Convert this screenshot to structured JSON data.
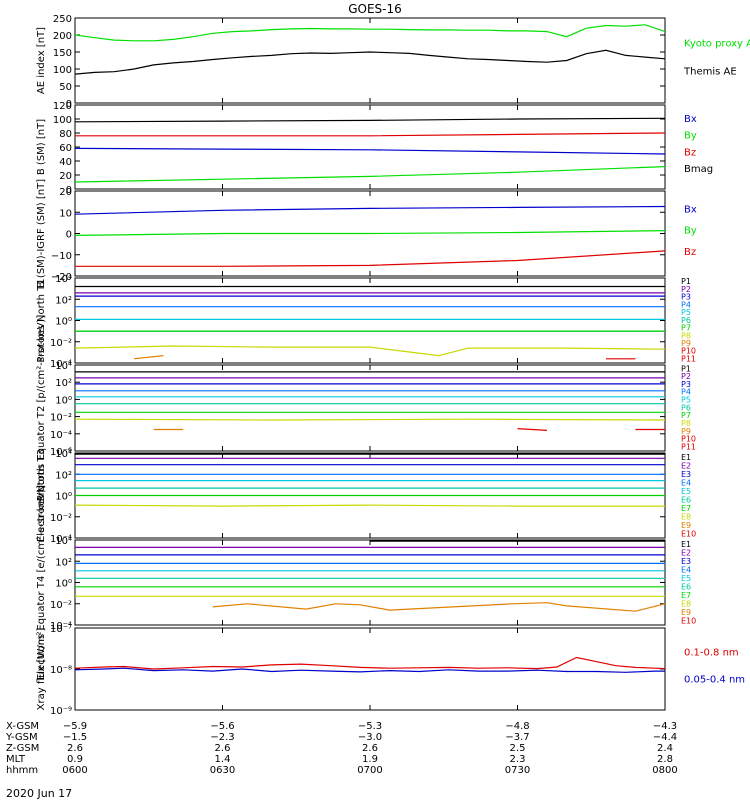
{
  "title": "GOES-16",
  "date_label": "2020 Jun 17",
  "colors": {
    "black": "#000000",
    "green": "#00e000",
    "blue": "#0000cc",
    "red": "#e00000",
    "P1": "#000000",
    "P2": "#7a00b0",
    "P3": "#0000d0",
    "P4": "#0070ff",
    "P5": "#00c8e0",
    "P6": "#00c8a0",
    "P7": "#00d000",
    "P8": "#c8d800",
    "P9": "#e08000",
    "P10": "#e00000",
    "P11": "#e00000"
  },
  "chart_data": [
    {
      "type": "line",
      "ylabel": "AE index [nT]",
      "ylim": [
        0,
        250
      ],
      "yticks": [
        "0",
        "50",
        "100",
        "150",
        "200",
        "250"
      ],
      "series": [
        {
          "name": "Kyoto proxy AE",
          "color": "#00e000",
          "x": [
            0,
            4,
            8,
            12,
            16,
            20,
            24,
            28,
            32,
            36,
            40,
            44,
            48,
            52,
            56,
            60,
            64,
            68,
            72,
            76,
            80,
            84,
            88,
            92,
            96,
            100,
            104,
            108,
            112,
            116,
            120
          ],
          "values": [
            200,
            192,
            185,
            183,
            183,
            187,
            195,
            205,
            210,
            212,
            216,
            218,
            219,
            218,
            218,
            217,
            217,
            216,
            215,
            215,
            214,
            214,
            212,
            212,
            210,
            195,
            220,
            228,
            226,
            230,
            210
          ]
        },
        {
          "name": "Themis AE",
          "color": "#000000",
          "x": [
            0,
            4,
            8,
            12,
            16,
            20,
            24,
            28,
            32,
            36,
            40,
            44,
            48,
            52,
            56,
            60,
            64,
            68,
            72,
            76,
            80,
            84,
            88,
            92,
            96,
            100,
            104,
            108,
            112,
            116,
            120
          ],
          "values": [
            85,
            90,
            92,
            100,
            112,
            118,
            122,
            128,
            133,
            137,
            140,
            145,
            147,
            146,
            148,
            150,
            148,
            146,
            140,
            135,
            130,
            128,
            125,
            122,
            120,
            125,
            145,
            155,
            140,
            135,
            130
          ]
        }
      ]
    },
    {
      "type": "line",
      "ylabel": "B (SM) [nT]",
      "ylim": [
        0,
        120
      ],
      "yticks": [
        "0",
        "20",
        "40",
        "60",
        "80",
        "100",
        "120"
      ],
      "series": [
        {
          "name": "Bx",
          "color": "#0000cc",
          "x": [
            0,
            30,
            60,
            90,
            120
          ],
          "values": [
            58,
            57,
            56,
            53,
            50
          ]
        },
        {
          "name": "By",
          "color": "#00e000",
          "x": [
            0,
            30,
            60,
            90,
            120
          ],
          "values": [
            10,
            14,
            18,
            24,
            32
          ]
        },
        {
          "name": "Bz",
          "color": "#e00000",
          "x": [
            0,
            30,
            60,
            90,
            120
          ],
          "values": [
            76,
            76,
            76,
            78,
            80
          ]
        },
        {
          "name": "Bmag",
          "color": "#000000",
          "x": [
            0,
            30,
            60,
            90,
            120
          ],
          "values": [
            96,
            97,
            98,
            100,
            101
          ]
        }
      ]
    },
    {
      "type": "line",
      "ylabel": "B (SM)-IGRF (SM) [nT]",
      "ylim": [
        -22,
        22
      ],
      "yticks": [
        "−20",
        "−10",
        "0",
        "10",
        "20"
      ],
      "series": [
        {
          "name": "Bx",
          "color": "#0000cc",
          "x": [
            0,
            30,
            60,
            90,
            120
          ],
          "values": [
            10,
            12,
            13,
            13.5,
            14
          ]
        },
        {
          "name": "By",
          "color": "#00e000",
          "x": [
            0,
            30,
            60,
            90,
            120
          ],
          "values": [
            -1,
            0,
            0,
            0.5,
            1.5
          ]
        },
        {
          "name": "Bz",
          "color": "#e00000",
          "x": [
            0,
            30,
            60,
            90,
            120
          ],
          "values": [
            -17,
            -17,
            -16.5,
            -14,
            -9
          ]
        }
      ]
    },
    {
      "type": "line",
      "log": true,
      "ylabel": "Protons North T1",
      "ylim_exp": [
        -4,
        4
      ],
      "yticks": [
        "10⁻⁴",
        "10⁻²",
        "10⁰",
        "10²",
        "10⁴"
      ],
      "series": [
        {
          "name": "P1",
          "x": [
            0,
            120
          ],
          "values": [
            3.2,
            3.2
          ]
        },
        {
          "name": "P2",
          "x": [
            0,
            120
          ],
          "values": [
            2.6,
            2.6
          ]
        },
        {
          "name": "P3",
          "x": [
            0,
            120
          ],
          "values": [
            2.3,
            2.3
          ]
        },
        {
          "name": "P4",
          "x": [
            0,
            120
          ],
          "values": [
            1.3,
            1.3
          ]
        },
        {
          "name": "P5",
          "x": [
            0,
            120
          ],
          "values": [
            0.1,
            0.1
          ]
        },
        {
          "name": "P6",
          "x": [
            0,
            120
          ],
          "values": [
            -1.0,
            -1.0
          ]
        },
        {
          "name": "P7",
          "x": [
            0,
            120
          ],
          "values": [
            -1.0,
            -1.0
          ]
        },
        {
          "name": "P8",
          "x": [
            0,
            20,
            40,
            60,
            74,
            80,
            100,
            120
          ],
          "values": [
            -2.6,
            -2.4,
            -2.5,
            -2.5,
            -3.3,
            -2.6,
            -2.6,
            -2.7
          ]
        },
        {
          "name": "P9",
          "x": [
            12,
            18
          ],
          "values": [
            -3.6,
            -3.3
          ]
        },
        {
          "name": "P10",
          "x": [
            108,
            114
          ],
          "values": [
            -3.6,
            -3.6
          ]
        },
        {
          "name": "P11",
          "x": [],
          "values": []
        }
      ]
    },
    {
      "type": "line",
      "log": true,
      "ylabel": "Protons Equator T2 [p/(cm²-s-sr-keV)]",
      "ylim_exp": [
        -6,
        4
      ],
      "yticks": [
        "10⁻⁶",
        "10⁻⁴",
        "10⁻²",
        "10⁰",
        "10²",
        "10⁴"
      ],
      "series": [
        {
          "name": "P1",
          "x": [
            0,
            120
          ],
          "values": [
            3.2,
            3.2
          ]
        },
        {
          "name": "P2",
          "x": [
            0,
            120
          ],
          "values": [
            2.5,
            2.5
          ]
        },
        {
          "name": "P3",
          "x": [
            0,
            120
          ],
          "values": [
            1.8,
            1.8
          ]
        },
        {
          "name": "P4",
          "x": [
            0,
            120
          ],
          "values": [
            1.0,
            1.0
          ]
        },
        {
          "name": "P5",
          "x": [
            0,
            120
          ],
          "values": [
            0.3,
            0.3
          ]
        },
        {
          "name": "P6",
          "x": [
            0,
            120
          ],
          "values": [
            -0.5,
            -0.5
          ]
        },
        {
          "name": "P7",
          "x": [
            0,
            120
          ],
          "values": [
            -1.5,
            -1.5
          ]
        },
        {
          "name": "P8",
          "x": [
            0,
            40,
            80,
            120
          ],
          "values": [
            -2.3,
            -2.4,
            -2.3,
            -2.4
          ]
        },
        {
          "name": "P9",
          "x": [
            16,
            22
          ],
          "values": [
            -3.5,
            -3.5
          ]
        },
        {
          "name": "P10",
          "x": [
            90,
            96
          ],
          "values": [
            -3.4,
            -3.6
          ]
        },
        {
          "name": "P11",
          "x": [
            114,
            120
          ],
          "values": [
            -3.5,
            -3.5
          ]
        }
      ]
    },
    {
      "type": "line",
      "log": true,
      "ylabel": "Electrons North T3",
      "ylim_exp": [
        -4,
        4
      ],
      "yticks": [
        "10⁻⁴",
        "10⁻²",
        "10⁰",
        "10²",
        "10⁴"
      ],
      "series": [
        {
          "name": "E1",
          "x": [
            0,
            120
          ],
          "values": [
            3.9,
            3.9
          ]
        },
        {
          "name": "E2",
          "x": [
            0,
            120
          ],
          "values": [
            3.5,
            3.5
          ]
        },
        {
          "name": "E3",
          "x": [
            0,
            120
          ],
          "values": [
            2.9,
            2.9
          ]
        },
        {
          "name": "E4",
          "x": [
            0,
            120
          ],
          "values": [
            2.0,
            2.0
          ]
        },
        {
          "name": "E5",
          "x": [
            0,
            120
          ],
          "values": [
            1.4,
            1.4
          ]
        },
        {
          "name": "E6",
          "x": [
            0,
            120
          ],
          "values": [
            0.7,
            0.7
          ]
        },
        {
          "name": "E7",
          "x": [
            0,
            120
          ],
          "values": [
            0.0,
            0.0
          ]
        },
        {
          "name": "E8",
          "x": [
            0,
            30,
            60,
            90,
            120
          ],
          "values": [
            -0.9,
            -1.0,
            -0.9,
            -1.0,
            -1.0
          ]
        },
        {
          "name": "E9",
          "x": [],
          "values": []
        },
        {
          "name": "E10",
          "x": [],
          "values": []
        }
      ]
    },
    {
      "type": "line",
      "log": true,
      "ylabel": "Electrons Equator T4 [e/(cm²-s-sr-keV)]",
      "ylim_exp": [
        -4,
        4
      ],
      "yticks": [
        "10⁻⁴",
        "10⁻²",
        "10⁰",
        "10²",
        "10⁴"
      ],
      "series": [
        {
          "name": "E1",
          "x": [
            60,
            120
          ],
          "values": [
            3.9,
            3.9
          ]
        },
        {
          "name": "E2",
          "x": [
            0,
            120
          ],
          "values": [
            3.3,
            3.3
          ]
        },
        {
          "name": "E3",
          "x": [
            0,
            120
          ],
          "values": [
            2.6,
            2.6
          ]
        },
        {
          "name": "E4",
          "x": [
            0,
            120
          ],
          "values": [
            1.8,
            1.8
          ]
        },
        {
          "name": "E5",
          "x": [
            0,
            120
          ],
          "values": [
            1.1,
            1.1
          ]
        },
        {
          "name": "E6",
          "x": [
            0,
            120
          ],
          "values": [
            0.4,
            0.4
          ]
        },
        {
          "name": "E7",
          "x": [
            0,
            120
          ],
          "values": [
            -0.4,
            -0.4
          ]
        },
        {
          "name": "E8",
          "x": [
            0,
            120
          ],
          "values": [
            -1.3,
            -1.3
          ]
        },
        {
          "name": "E9",
          "x": [
            28,
            35,
            47,
            53,
            58,
            64,
            89,
            96,
            100,
            114,
            120
          ],
          "values": [
            -2.3,
            -2.0,
            -2.5,
            -2.0,
            -2.1,
            -2.6,
            -2.0,
            -1.9,
            -2.2,
            -2.7,
            -2.0
          ]
        },
        {
          "name": "E10",
          "x": [],
          "values": []
        }
      ]
    },
    {
      "type": "line",
      "log": true,
      "ylabel": "Xray flux [W/m²]",
      "ylim_exp": [
        -9,
        -7
      ],
      "yticks": [
        "10⁻⁹",
        "10⁻⁸",
        "10⁻⁷"
      ],
      "series": [
        {
          "name": "0.1-0.8 nm",
          "color": "#e00000",
          "x": [
            0,
            6,
            10,
            16,
            22,
            28,
            34,
            40,
            46,
            52,
            58,
            64,
            70,
            76,
            82,
            88,
            94,
            98,
            102,
            106,
            110,
            114,
            118,
            120
          ],
          "values": [
            -7.98,
            -7.95,
            -7.94,
            -8.0,
            -7.97,
            -7.94,
            -7.95,
            -7.9,
            -7.88,
            -7.92,
            -7.96,
            -7.98,
            -7.97,
            -7.96,
            -7.98,
            -7.97,
            -7.99,
            -7.95,
            -7.72,
            -7.82,
            -7.92,
            -7.96,
            -7.98,
            -7.99
          ]
        },
        {
          "name": "0.05-0.4 nm",
          "color": "#0000cc",
          "x": [
            0,
            6,
            10,
            16,
            22,
            28,
            34,
            40,
            46,
            52,
            58,
            64,
            70,
            76,
            82,
            88,
            94,
            100,
            106,
            112,
            118,
            120
          ],
          "values": [
            -8.02,
            -8.0,
            -7.98,
            -8.04,
            -8.02,
            -8.05,
            -8.0,
            -8.06,
            -8.03,
            -8.05,
            -8.07,
            -8.04,
            -8.06,
            -8.02,
            -8.05,
            -8.05,
            -8.03,
            -8.06,
            -8.06,
            -8.08,
            -8.05,
            -8.05
          ]
        }
      ]
    }
  ],
  "axis": {
    "x_range_minutes": [
      0,
      120
    ],
    "x_ticks_minutes": [
      0,
      30,
      60,
      90,
      120
    ],
    "rows": [
      {
        "label": "X-GSM",
        "values": [
          "−5.9",
          "−5.6",
          "−5.3",
          "−4.8",
          "−4.3"
        ]
      },
      {
        "label": "Y-GSM",
        "values": [
          "−1.5",
          "−2.3",
          "−3.0",
          "−3.7",
          "−4.4"
        ]
      },
      {
        "label": "Z-GSM",
        "values": [
          "2.6",
          "2.6",
          "2.6",
          "2.5",
          "2.4"
        ]
      },
      {
        "label": "MLT",
        "values": [
          "0.9",
          "1.4",
          "1.9",
          "2.3",
          "2.8"
        ]
      },
      {
        "label": "hhmm",
        "values": [
          "0600",
          "0630",
          "0700",
          "0730",
          "0800"
        ]
      }
    ]
  }
}
